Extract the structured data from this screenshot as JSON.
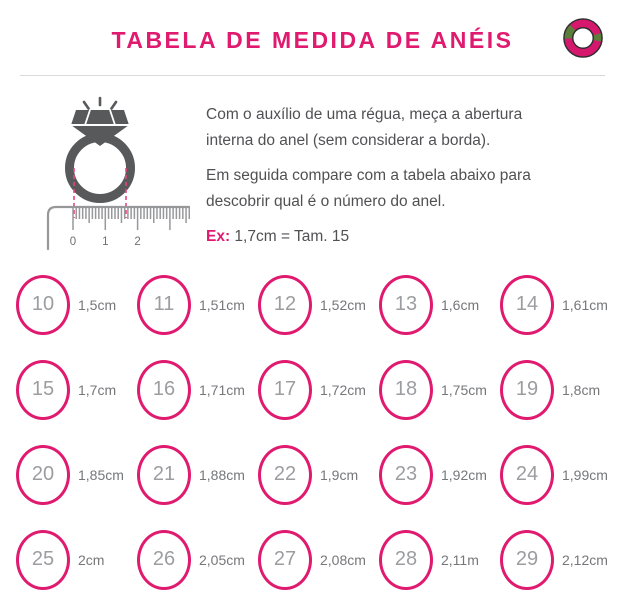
{
  "header": {
    "title": "TABELA DE MEDIDA DE ANÉIS"
  },
  "illustration": {
    "ruler_labels": [
      "0",
      "1",
      "2"
    ]
  },
  "instructions": {
    "paragraph1_lines": [
      "Com o auxílio de uma régua, meça a abertura",
      "interna do anel (sem considerar a borda)."
    ],
    "paragraph2_lines": [
      "Em seguida compare com a tabela abaixo para",
      "descobrir qual é o número do anel."
    ],
    "example_label": "Ex:",
    "example_value": " 1,7cm = Tam. 15"
  },
  "sizes": {
    "columns": 5,
    "items": [
      {
        "size": "10",
        "measure": "1,5cm"
      },
      {
        "size": "11",
        "measure": "1,51cm"
      },
      {
        "size": "12",
        "measure": "1,52cm"
      },
      {
        "size": "13",
        "measure": "1,6cm"
      },
      {
        "size": "14",
        "measure": "1,61cm"
      },
      {
        "size": "15",
        "measure": "1,7cm"
      },
      {
        "size": "16",
        "measure": "1,71cm"
      },
      {
        "size": "17",
        "measure": "1,72cm"
      },
      {
        "size": "18",
        "measure": "1,75cm"
      },
      {
        "size": "19",
        "measure": "1,8cm"
      },
      {
        "size": "20",
        "measure": "1,85cm"
      },
      {
        "size": "21",
        "measure": "1,88cm"
      },
      {
        "size": "22",
        "measure": "1,9cm"
      },
      {
        "size": "23",
        "measure": "1,92cm"
      },
      {
        "size": "24",
        "measure": "1,99cm"
      },
      {
        "size": "25",
        "measure": "2cm"
      },
      {
        "size": "26",
        "measure": "2,05cm"
      },
      {
        "size": "27",
        "measure": "2,08cm"
      },
      {
        "size": "28",
        "measure": "2,11m"
      },
      {
        "size": "29",
        "measure": "2,12cm"
      }
    ]
  },
  "colors": {
    "accent_pink": "#E01A6F",
    "illustration_gray": "#58595B",
    "logo_green": "#5B7F3B"
  }
}
